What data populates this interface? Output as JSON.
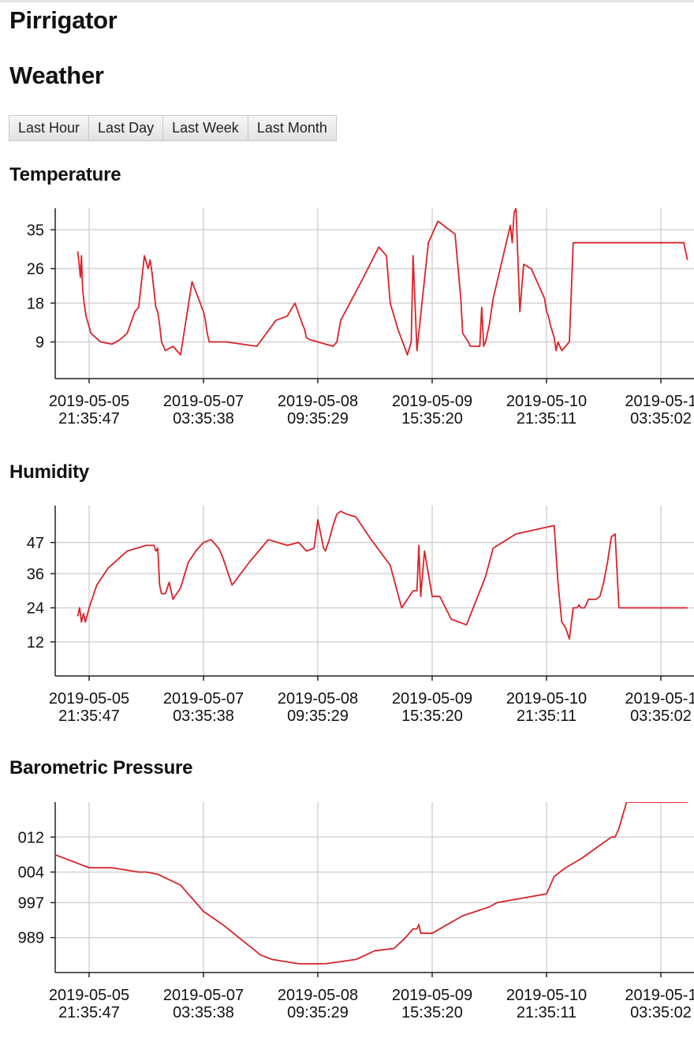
{
  "app": {
    "title": "Pirrigator"
  },
  "page": {
    "title": "Weather"
  },
  "range_buttons": [
    "Last Hour",
    "Last Day",
    "Last Week",
    "Last Month"
  ],
  "colors": {
    "series": "#d8232a",
    "grid": "#d3d3d3",
    "axis": "#222222"
  },
  "chart_data": [
    {
      "type": "line",
      "title": "Temperature",
      "x_ticks": [
        [
          "2019-05-05",
          "21:35:47"
        ],
        [
          "2019-05-07",
          "03:35:38"
        ],
        [
          "2019-05-08",
          "09:35:29"
        ],
        [
          "2019-05-09",
          "15:35:20"
        ],
        [
          "2019-05-10",
          "21:35:11"
        ],
        [
          "2019-05-1",
          "03:35:02"
        ]
      ],
      "y_ticks": [
        "35",
        "26",
        "18",
        "9"
      ],
      "y_tick_values": [
        35,
        26,
        18,
        9
      ],
      "ylim": [
        0.5,
        40
      ],
      "x_hours_per_tick": 30,
      "grid": true,
      "x": [
        -3,
        -2.6,
        -2.3,
        -2,
        -1.7,
        -1.3,
        -0.8,
        0.5,
        3,
        6,
        8,
        10,
        12,
        13,
        14.5,
        15.5,
        16,
        16.5,
        17,
        17.5,
        18,
        18.5,
        19,
        20,
        21,
        22,
        24,
        27,
        30,
        30.5,
        31,
        31.5,
        36,
        44,
        49,
        52,
        54,
        56,
        56.5,
        57,
        58,
        60,
        62,
        64,
        64.5,
        65,
        66,
        72,
        76,
        78,
        79,
        81,
        83.5,
        84.5,
        85,
        86,
        89,
        91.5,
        96,
        97.5,
        98,
        99.5,
        100,
        101,
        102.5,
        103,
        103.5,
        104,
        105,
        106,
        110.5,
        111,
        111.5,
        112,
        113,
        114,
        116,
        119.5,
        120,
        120.5,
        121,
        122,
        122.5,
        123,
        124,
        126,
        127,
        128,
        129,
        130,
        131,
        132,
        133,
        137,
        139,
        140,
        153,
        156,
        157
      ],
      "y": [
        30,
        27,
        24,
        29,
        21,
        18,
        15,
        11,
        9,
        8.5,
        9.5,
        11,
        16,
        17,
        29,
        26,
        28,
        25,
        21,
        17,
        16,
        13,
        9,
        7,
        7.5,
        8,
        6,
        23,
        16,
        14,
        11,
        9,
        9,
        8,
        14,
        15,
        18,
        13,
        12,
        10,
        9.5,
        9,
        8.5,
        8,
        8.5,
        9,
        14,
        24,
        31,
        29,
        18,
        12,
        6,
        9,
        29,
        7,
        32,
        37,
        34,
        19,
        11,
        9,
        8,
        8,
        8,
        17,
        8,
        9,
        13,
        19,
        36,
        32,
        39,
        40,
        16,
        27,
        26,
        19,
        16,
        15,
        13,
        10,
        7,
        9,
        7,
        9,
        32,
        32,
        32,
        32,
        32,
        32,
        32,
        32,
        32,
        32,
        32,
        32,
        28
      ]
    },
    {
      "type": "line",
      "title": "Humidity",
      "x_ticks": [
        [
          "2019-05-05",
          "21:35:47"
        ],
        [
          "2019-05-07",
          "03:35:38"
        ],
        [
          "2019-05-08",
          "09:35:29"
        ],
        [
          "2019-05-09",
          "15:35:20"
        ],
        [
          "2019-05-10",
          "21:35:11"
        ],
        [
          "2019-05-1",
          "03:35:02"
        ]
      ],
      "y_ticks": [
        "47",
        "36",
        "24",
        "12"
      ],
      "y_tick_values": [
        47,
        36,
        24,
        12
      ],
      "ylim": [
        0,
        60
      ],
      "x_hours_per_tick": 30,
      "grid": true,
      "x": [
        -3,
        -2.5,
        -2,
        -1.5,
        -1,
        0,
        2,
        5,
        10,
        15,
        17,
        17.5,
        18,
        18.5,
        19,
        20,
        21,
        22,
        24,
        26,
        28,
        30,
        32,
        34,
        35,
        37.5,
        42,
        47,
        52,
        55,
        57,
        59,
        60,
        61.5,
        62,
        63,
        64,
        65,
        66,
        67.5,
        70,
        74,
        79,
        82,
        85,
        86,
        86.5,
        87,
        88,
        89,
        90,
        92,
        95,
        99,
        104,
        106,
        112,
        122,
        123,
        124,
        125,
        126,
        127,
        128,
        128.5,
        129,
        130,
        131,
        133,
        134,
        135,
        136,
        137,
        138,
        139,
        156,
        157
      ],
      "y": [
        21,
        24,
        19,
        22,
        19,
        24,
        32,
        38,
        44,
        46,
        46,
        44,
        45,
        32,
        29,
        29,
        33,
        27,
        31,
        40,
        44,
        47,
        48,
        45,
        42,
        32,
        40,
        48,
        46,
        47,
        44,
        45,
        55,
        45,
        44,
        48,
        53,
        57,
        58,
        57,
        56,
        48,
        39,
        24,
        30,
        30,
        46,
        28,
        44,
        36,
        28,
        28,
        20,
        18,
        35,
        45,
        50,
        53,
        33,
        19,
        17,
        13,
        24,
        24,
        25,
        24,
        24,
        27,
        27,
        28,
        33,
        40,
        49,
        50,
        24,
        24,
        24
      ]
    },
    {
      "type": "line",
      "title": "Barometric Pressure",
      "x_ticks": [
        [
          "2019-05-05",
          "21:35:47"
        ],
        [
          "2019-05-07",
          "03:35:38"
        ],
        [
          "2019-05-08",
          "09:35:29"
        ],
        [
          "2019-05-09",
          "15:35:20"
        ],
        [
          "2019-05-10",
          "21:35:11"
        ],
        [
          "2019-05-1",
          "03:35:02"
        ]
      ],
      "y_ticks": [
        "012",
        "004",
        "997",
        "989"
      ],
      "y_tick_values": [
        1012,
        1004,
        997,
        989
      ],
      "ylim": [
        981,
        1020
      ],
      "x_hours_per_tick": 30,
      "grid": true,
      "x": [
        -9,
        0,
        6,
        13,
        15,
        18,
        24,
        30,
        35,
        45,
        48,
        55,
        60,
        62,
        70,
        75,
        80,
        83,
        85,
        86,
        86.5,
        87,
        90,
        98,
        105,
        107,
        120,
        122,
        125,
        129,
        137,
        138,
        139,
        141,
        156,
        157
      ],
      "y": [
        1008,
        1005,
        1005,
        1004,
        1004,
        1003.5,
        1001,
        995,
        992,
        985,
        984,
        983,
        983,
        983,
        984,
        986,
        986.5,
        989,
        991,
        991,
        992,
        990,
        990,
        994,
        996,
        997,
        999,
        1003,
        1005,
        1007,
        1012,
        1012,
        1014,
        1020,
        1020,
        1020
      ]
    }
  ]
}
